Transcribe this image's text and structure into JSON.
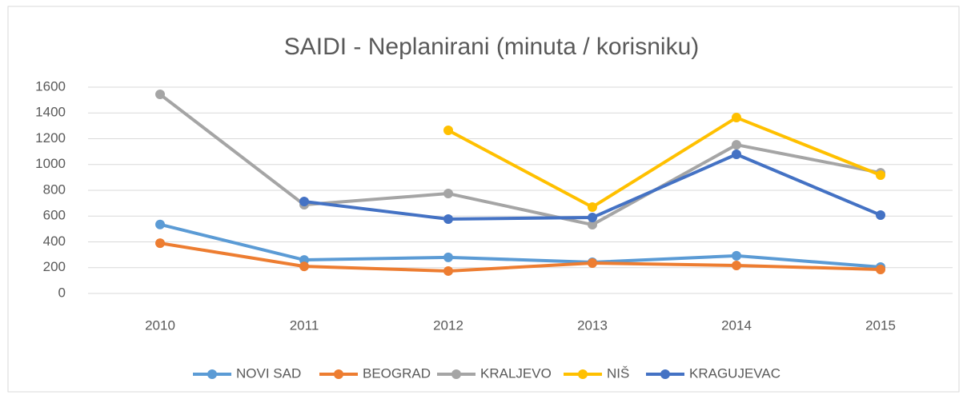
{
  "chart_data": {
    "type": "line",
    "title": "SAIDI - Neplanirani (minuta / korisniku)",
    "categories": [
      "2010",
      "2011",
      "2012",
      "2013",
      "2014",
      "2015"
    ],
    "series": [
      {
        "name": "NOVI SAD",
        "color": "#5b9bd5",
        "values": [
          535,
          260,
          280,
          242,
          292,
          205
        ]
      },
      {
        "name": "BEOGRAD",
        "color": "#ed7d31",
        "values": [
          390,
          210,
          174,
          236,
          217,
          186
        ]
      },
      {
        "name": "KRALJEVO",
        "color": "#a5a5a5",
        "values": [
          1544,
          688,
          775,
          533,
          1153,
          936
        ]
      },
      {
        "name": "NIŠ",
        "color": "#ffc000",
        "values": [
          null,
          null,
          1265,
          670,
          1364,
          918
        ]
      },
      {
        "name": "KRAGUJEVAC",
        "color": "#4472c4",
        "values": [
          null,
          713,
          577,
          589,
          1079,
          608
        ]
      }
    ],
    "ylim": [
      0,
      1600
    ],
    "yticks": [
      0,
      200,
      400,
      600,
      800,
      1000,
      1200,
      1400,
      1600
    ],
    "grid": true,
    "legend": "bottom"
  }
}
